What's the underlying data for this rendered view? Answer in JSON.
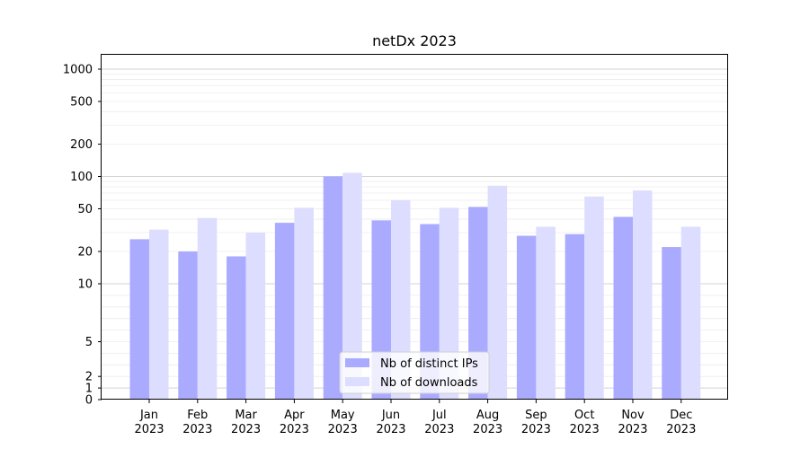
{
  "chart_data": {
    "type": "bar",
    "title": "netDx 2023",
    "xlabel": "",
    "ylabel": "",
    "yscale": "symlog",
    "ylim": [
      0,
      1200
    ],
    "yticks": [
      0,
      1,
      2,
      5,
      10,
      20,
      50,
      100,
      200,
      500,
      1000
    ],
    "ytick_labels": [
      "0",
      "1",
      "2",
      "5",
      "10",
      "20",
      "50",
      "100",
      "200",
      "500",
      "1000"
    ],
    "grid": true,
    "legend_position": "bottom-center",
    "categories": [
      [
        "Jan",
        "2023"
      ],
      [
        "Feb",
        "2023"
      ],
      [
        "Mar",
        "2023"
      ],
      [
        "Apr",
        "2023"
      ],
      [
        "May",
        "2023"
      ],
      [
        "Jun",
        "2023"
      ],
      [
        "Jul",
        "2023"
      ],
      [
        "Aug",
        "2023"
      ],
      [
        "Sep",
        "2023"
      ],
      [
        "Oct",
        "2023"
      ],
      [
        "Nov",
        "2023"
      ],
      [
        "Dec",
        "2023"
      ]
    ],
    "series": [
      {
        "name": "Nb of distinct IPs",
        "color": "#aaaaff",
        "values": [
          26,
          20,
          18,
          37,
          100,
          39,
          36,
          52,
          28,
          29,
          42,
          22
        ]
      },
      {
        "name": "Nb of downloads",
        "color": "#ddddff",
        "values": [
          32,
          41,
          30,
          51,
          108,
          60,
          51,
          82,
          34,
          65,
          74,
          34
        ]
      }
    ]
  }
}
